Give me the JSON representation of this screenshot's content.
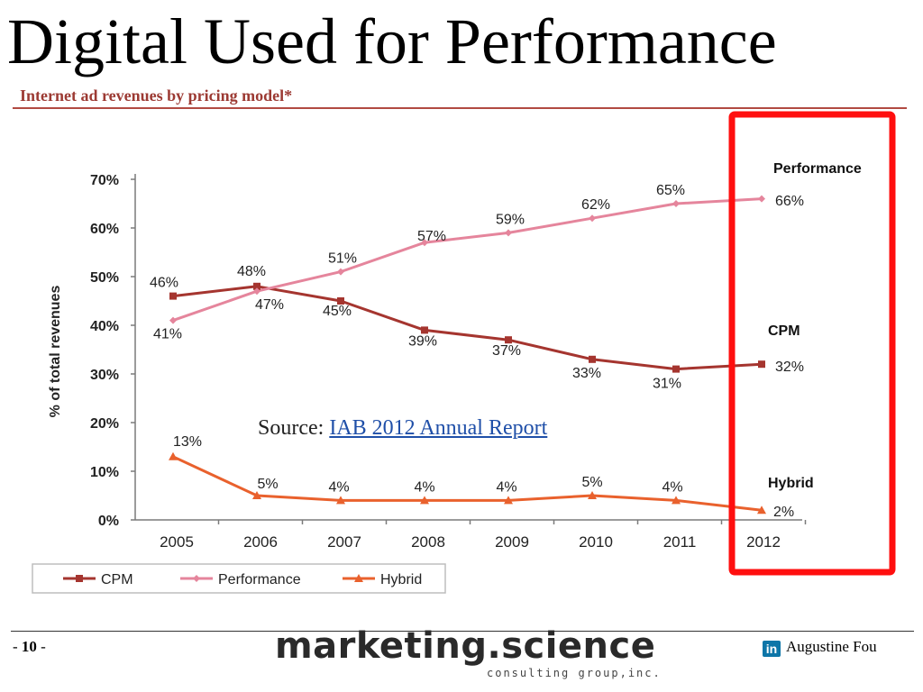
{
  "slide": {
    "title": "Digital Used for Performance",
    "page_prefix": "-",
    "page_number": "10",
    "page_suffix": "-",
    "brand_main": "marketing.science",
    "brand_sub": "consulting group,inc.",
    "linkedin_icon_text": "in",
    "author": "Augustine Fou"
  },
  "source": {
    "prefix": "Source:",
    "link_text": "IAB 2012 Annual Report"
  },
  "colors": {
    "cpm": "#a5352f",
    "performance": "#e5859c",
    "hybrid": "#e9612d",
    "highlight_box": "#ff0f0f",
    "title_accent": "#9c3a33"
  },
  "chart_data": {
    "type": "line",
    "title": "Internet ad revenues by pricing model*",
    "xlabel": "",
    "ylabel": "% of total revenues",
    "x": [
      "2005",
      "2006",
      "2007",
      "2008",
      "2009",
      "2010",
      "2011",
      "2012"
    ],
    "ylim": [
      0,
      70
    ],
    "yticks": [
      "0%",
      "10%",
      "20%",
      "30%",
      "40%",
      "50%",
      "60%",
      "70%"
    ],
    "grid": false,
    "legend_position": "bottom-left",
    "series": [
      {
        "name": "CPM",
        "end_label": "CPM",
        "values": [
          46,
          48,
          45,
          39,
          37,
          33,
          31,
          32
        ],
        "labels": [
          "46%",
          "48%",
          "45%",
          "39%",
          "37%",
          "33%",
          "31%",
          "32%"
        ],
        "marker": "square"
      },
      {
        "name": "Performance",
        "end_label": "Performance",
        "values": [
          41,
          47,
          51,
          57,
          59,
          62,
          65,
          66
        ],
        "labels": [
          "41%",
          "47%",
          "51%",
          "57%",
          "59%",
          "62%",
          "65%",
          "66%"
        ],
        "marker": "diamond"
      },
      {
        "name": "Hybrid",
        "end_label": "Hybrid",
        "values": [
          13,
          5,
          4,
          4,
          4,
          5,
          4,
          2
        ],
        "labels": [
          "13%",
          "5%",
          "4%",
          "4%",
          "4%",
          "5%",
          "4%",
          "2%"
        ],
        "marker": "triangle"
      }
    ],
    "highlight": {
      "category": "2012",
      "style": "red box"
    }
  }
}
